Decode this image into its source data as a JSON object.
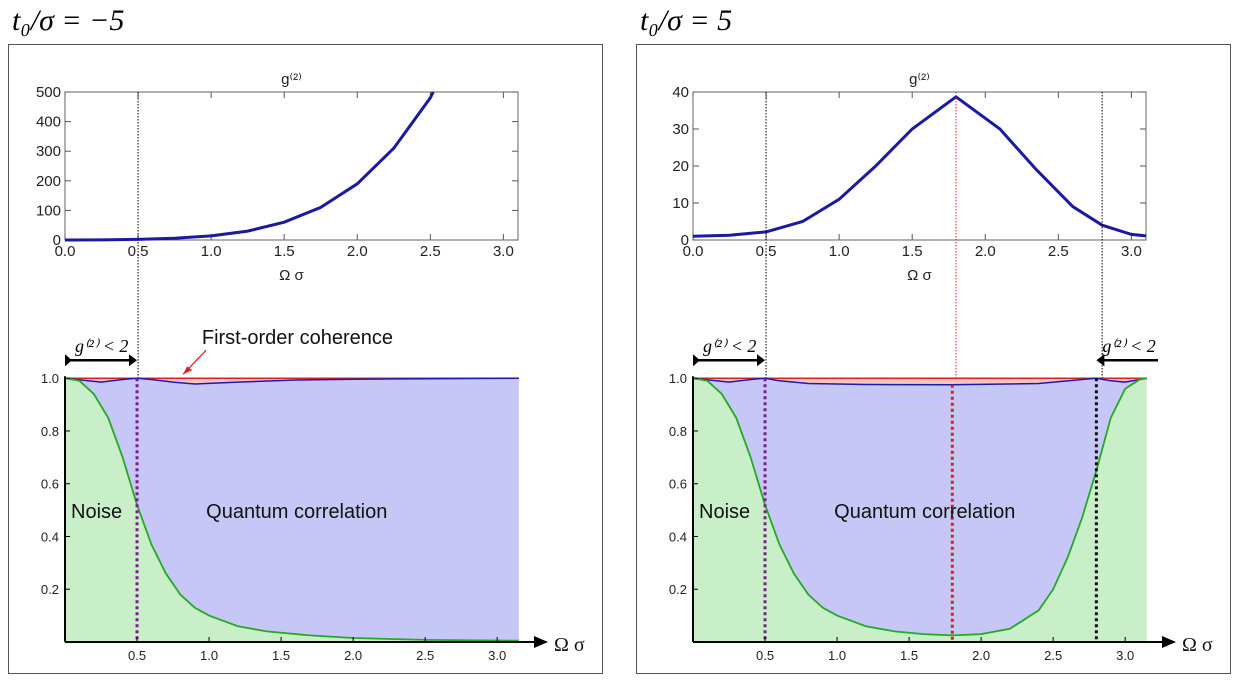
{
  "panels": [
    {
      "title": "t₀/σ = −5",
      "g2": {
        "title": "g⁽²⁾",
        "xlabel": "Ω σ",
        "xlim": [
          0,
          3.1
        ],
        "ylim": [
          0,
          500
        ],
        "xticks": [
          "0.0",
          "0.5",
          "1.0",
          "1.5",
          "2.0",
          "2.5",
          "3.0"
        ],
        "yticks": [
          "0",
          "100",
          "200",
          "300",
          "400",
          "500"
        ],
        "curve_color": "#1a1aa0",
        "x": [
          0,
          0.25,
          0.5,
          0.75,
          1.0,
          1.25,
          1.5,
          1.75,
          2.0,
          2.25,
          2.5,
          2.52
        ],
        "y": [
          0,
          0.5,
          2,
          6,
          14,
          30,
          60,
          110,
          190,
          310,
          480,
          500
        ],
        "vlines": [
          {
            "x": 0.5,
            "color": "#000000"
          }
        ]
      },
      "main": {
        "axis_label": "Ω σ",
        "xlim": [
          0,
          3.2
        ],
        "ylim": [
          0,
          1.05
        ],
        "xticks": [
          "0.5",
          "1.0",
          "1.5",
          "2.0",
          "2.5",
          "3.0"
        ],
        "yticks": [
          "0.2",
          "0.4",
          "0.6",
          "0.8",
          "1.0"
        ],
        "coherence": {
          "x": [
            0,
            3.15
          ],
          "y": [
            1.0,
            1.0
          ],
          "color": "#e02020"
        },
        "blue_curve": {
          "x": [
            0,
            0.25,
            0.4,
            0.5,
            0.6,
            0.75,
            0.9,
            1.2,
            1.6,
            2.0,
            2.5,
            3.15
          ],
          "y": [
            1.0,
            0.985,
            0.995,
            1.0,
            0.995,
            0.985,
            0.978,
            0.985,
            0.993,
            0.996,
            0.998,
            1.0
          ],
          "color": "#1a1ab0"
        },
        "green_curve": {
          "x": [
            0,
            0.1,
            0.2,
            0.3,
            0.4,
            0.5,
            0.6,
            0.7,
            0.8,
            0.9,
            1.0,
            1.2,
            1.4,
            1.7,
            2.0,
            2.5,
            3.15
          ],
          "y": [
            1.0,
            0.99,
            0.94,
            0.85,
            0.7,
            0.52,
            0.37,
            0.26,
            0.18,
            0.13,
            0.1,
            0.06,
            0.04,
            0.025,
            0.015,
            0.008,
            0.005
          ],
          "color": "#22aa22"
        },
        "fills": {
          "quantum": "#c7c7f7",
          "noise": "#c9efc9",
          "coherence": "#f6c6c6"
        },
        "dashed_lines": [
          {
            "x": 0.5,
            "color": "#7a1f8a"
          }
        ],
        "annotations": {
          "noise": "Noise",
          "quantum": "Quantum correlation",
          "first_order": "First-order coherence",
          "g2_condition_left": "g⁽²⁾ < 2"
        }
      }
    },
    {
      "title": "t₀/σ = 5",
      "g2": {
        "title": "g⁽²⁾",
        "xlabel": "Ω σ",
        "xlim": [
          0,
          3.1
        ],
        "ylim": [
          0,
          40
        ],
        "xticks": [
          "0.0",
          "0.5",
          "1.0",
          "1.5",
          "2.0",
          "2.5",
          "3.0"
        ],
        "yticks": [
          "0",
          "10",
          "20",
          "30",
          "40"
        ],
        "curve_color": "#1a1aa0",
        "x": [
          0,
          0.25,
          0.5,
          0.75,
          1.0,
          1.25,
          1.5,
          1.8,
          2.1,
          2.35,
          2.6,
          2.8,
          3.0,
          3.1
        ],
        "y": [
          1.0,
          1.3,
          2.2,
          5,
          11,
          20,
          30,
          38.7,
          30,
          19,
          9,
          4,
          1.5,
          1.1
        ],
        "vlines": [
          {
            "x": 0.5,
            "color": "#000000"
          },
          {
            "x": 1.8,
            "color": "#e02020"
          },
          {
            "x": 2.8,
            "color": "#000000"
          }
        ]
      },
      "main": {
        "axis_label": "Ω σ",
        "xlim": [
          0,
          3.2
        ],
        "ylim": [
          0,
          1.05
        ],
        "xticks": [
          "0.5",
          "1.0",
          "1.5",
          "2.0",
          "2.5",
          "3.0"
        ],
        "yticks": [
          "0.2",
          "0.4",
          "0.6",
          "0.8",
          "1.0"
        ],
        "coherence": {
          "x": [
            0,
            3.15
          ],
          "y": [
            1.0,
            1.0
          ],
          "color": "#e02020"
        },
        "blue_curve": {
          "x": [
            0,
            0.25,
            0.4,
            0.5,
            0.6,
            0.8,
            1.2,
            1.8,
            2.4,
            2.7,
            2.8,
            2.9,
            3.0,
            3.15
          ],
          "y": [
            1.0,
            0.985,
            0.995,
            1.0,
            0.99,
            0.98,
            0.976,
            0.975,
            0.98,
            0.995,
            1.0,
            0.99,
            0.985,
            1.0
          ],
          "color": "#1a1ab0"
        },
        "green_curve": {
          "x": [
            0,
            0.1,
            0.2,
            0.3,
            0.4,
            0.5,
            0.6,
            0.7,
            0.8,
            0.9,
            1.0,
            1.2,
            1.4,
            1.6,
            1.8,
            2.0,
            2.2,
            2.4,
            2.5,
            2.6,
            2.7,
            2.8,
            2.9,
            3.0,
            3.1,
            3.15
          ],
          "y": [
            1.0,
            0.99,
            0.94,
            0.85,
            0.7,
            0.52,
            0.37,
            0.26,
            0.18,
            0.13,
            0.1,
            0.06,
            0.04,
            0.03,
            0.025,
            0.03,
            0.05,
            0.12,
            0.2,
            0.32,
            0.47,
            0.65,
            0.85,
            0.96,
            0.995,
            1.0
          ],
          "color": "#22aa22"
        },
        "fills": {
          "quantum": "#c7c7f7",
          "noise": "#c9efc9",
          "coherence": "#f6c6c6"
        },
        "dashed_lines": [
          {
            "x": 0.5,
            "color": "#7a1f8a"
          },
          {
            "x": 1.8,
            "color": "#e02020"
          },
          {
            "x": 2.8,
            "color": "#111111"
          }
        ],
        "annotations": {
          "noise": "Noise",
          "quantum": "Quantum correlation",
          "g2_condition_left": "g⁽²⁾ < 2",
          "g2_condition_right": "g⁽²⁾ < 2"
        }
      }
    }
  ]
}
